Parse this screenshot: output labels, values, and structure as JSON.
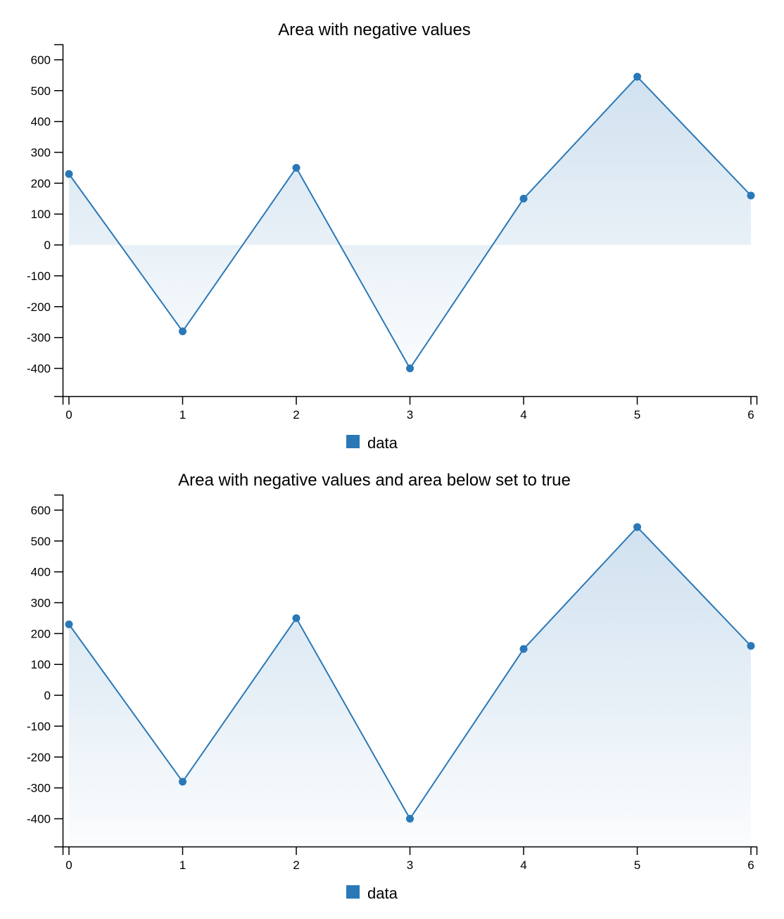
{
  "chart_data": [
    {
      "type": "area",
      "title": "Area with negative values",
      "x": [
        0,
        1,
        2,
        3,
        4,
        5,
        6
      ],
      "series": [
        {
          "name": "data",
          "values": [
            230,
            -280,
            250,
            -400,
            150,
            545,
            160
          ]
        }
      ],
      "ylim": [
        -490,
        650
      ],
      "yticks": [
        600,
        500,
        400,
        300,
        200,
        100,
        0,
        -100,
        -200,
        -300,
        -400
      ],
      "xticks": [
        0,
        1,
        2,
        3,
        4,
        5,
        6
      ],
      "area_below": false,
      "grid": false,
      "legend_position": "bottom-center",
      "color": "#2a78b7"
    },
    {
      "type": "area",
      "title": "Area with negative values and area below set to true",
      "x": [
        0,
        1,
        2,
        3,
        4,
        5,
        6
      ],
      "series": [
        {
          "name": "data",
          "values": [
            230,
            -280,
            250,
            -400,
            150,
            545,
            160
          ]
        }
      ],
      "ylim": [
        -490,
        650
      ],
      "yticks": [
        600,
        500,
        400,
        300,
        200,
        100,
        0,
        -100,
        -200,
        -300,
        -400
      ],
      "xticks": [
        0,
        1,
        2,
        3,
        4,
        5,
        6
      ],
      "area_below": true,
      "grid": false,
      "legend_position": "bottom-center",
      "color": "#2a78b7"
    }
  ]
}
